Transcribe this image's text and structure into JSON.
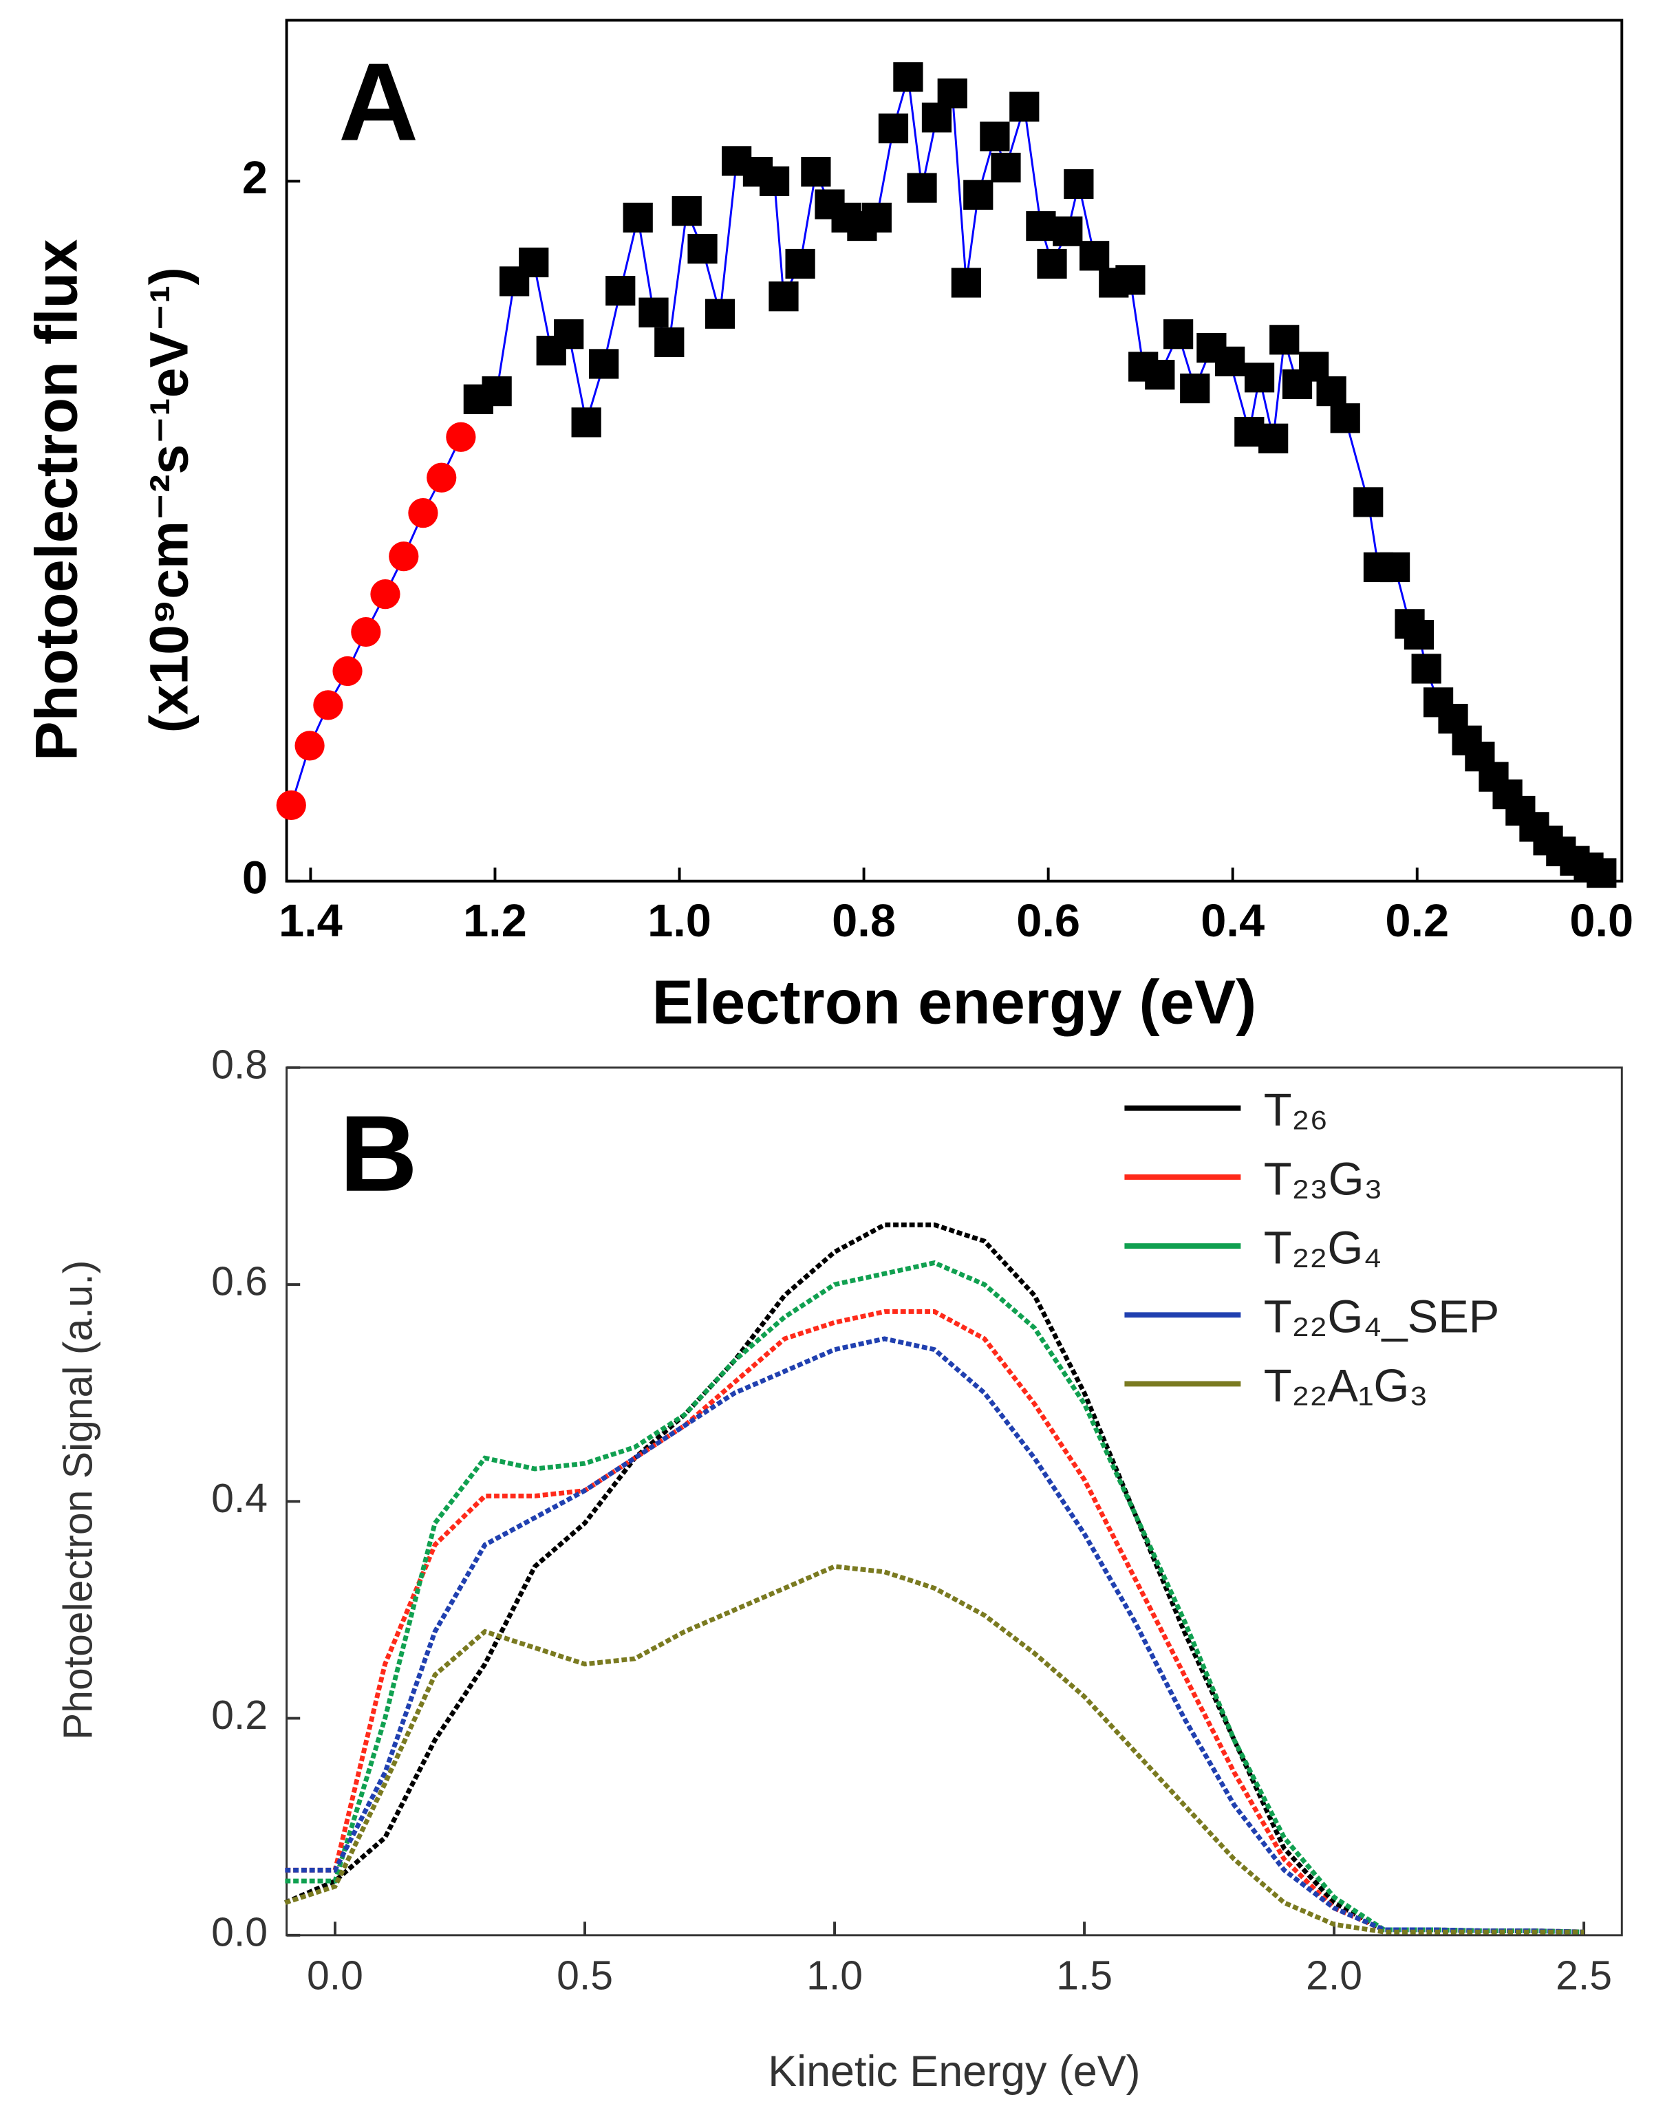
{
  "chart_data": [
    {
      "type": "scatter",
      "panel_label": "A",
      "xlabel": "Electron energy (eV)",
      "ylabel": [
        "Photoelectron flux",
        "(x10⁹cm⁻²s⁻¹eV⁻¹)"
      ],
      "xlim": [
        1.426,
        -0.022
      ],
      "ylim": [
        0,
        2.46
      ],
      "xticks": [
        1.4,
        1.2,
        {
          "value": 1,
          "label": "1.0"
        },
        0.8,
        0.6,
        0.4,
        0.2,
        {
          "value": 0,
          "label": "0.0"
        }
      ],
      "yticks": [
        0,
        2
      ],
      "series": [
        {
          "color": "#ff0000",
          "marker": "circle",
          "line_color": "#0000ff",
          "x": [
            1.421,
            1.401,
            1.381,
            1.36,
            1.34,
            1.319,
            1.299,
            1.278,
            1.258,
            1.237
          ],
          "values": [
            0.217,
            0.387,
            0.503,
            0.6,
            0.712,
            0.82,
            0.928,
            1.052,
            1.153,
            1.269
          ]
        },
        {
          "color": "#000000",
          "marker": "square",
          "line_color": "#0000ff",
          "x": [
            1.218,
            1.198,
            1.179,
            1.158,
            1.139,
            1.12,
            1.101,
            1.082,
            1.064,
            1.045,
            1.028,
            1.011,
            0.992,
            0.975,
            0.956,
            0.938,
            0.915,
            0.897,
            0.887,
            0.869,
            0.852,
            0.837,
            0.819,
            0.802,
            0.786,
            0.768,
            0.752,
            0.737,
            0.721,
            0.704,
            0.689,
            0.676,
            0.658,
            0.646,
            0.626,
            0.608,
            0.596,
            0.579,
            0.567,
            0.55,
            0.529,
            0.511,
            0.497,
            0.479,
            0.459,
            0.441,
            0.423,
            0.403,
            0.382,
            0.371,
            0.356,
            0.344,
            0.33,
            0.312,
            0.293,
            0.278,
            0.253,
            0.242,
            0.224,
            0.208,
            0.198,
            0.19,
            0.177,
            0.161,
            0.146,
            0.132,
            0.117,
            0.102,
            0.088,
            0.073,
            0.058,
            0.044,
            0.029,
            0.014,
            0.0
          ],
          "values": [
            1.377,
            1.4,
            1.714,
            1.768,
            1.516,
            1.563,
            1.311,
            1.478,
            1.687,
            1.896,
            1.625,
            1.54,
            1.915,
            1.807,
            1.621,
            2.058,
            2.027,
            2.0,
            1.671,
            1.764,
            2.027,
            1.934,
            1.896,
            1.872,
            1.896,
            2.151,
            2.298,
            1.981,
            2.182,
            2.251,
            1.71,
            1.961,
            2.128,
            2.039,
            2.213,
            1.872,
            1.764,
            1.857,
            1.992,
            1.787,
            1.71,
            1.718,
            1.47,
            1.447,
            1.563,
            1.408,
            1.524,
            1.485,
            1.284,
            1.439,
            1.265,
            1.547,
            1.42,
            1.47,
            1.4,
            1.323,
            1.083,
            0.897,
            0.897,
            0.735,
            0.704,
            0.607,
            0.511,
            0.464,
            0.402,
            0.356,
            0.298,
            0.248,
            0.201,
            0.155,
            0.116,
            0.085,
            0.058,
            0.039,
            0.023
          ]
        }
      ]
    },
    {
      "type": "line",
      "panel_label": "B",
      "xlabel": "Kinetic Energy (eV)",
      "ylabel": "Photoelectron Signal (a.u.)",
      "xlim": [
        -0.097,
        2.576
      ],
      "ylim": [
        0,
        0.8
      ],
      "xticks": [
        {
          "value": 0,
          "label": "0.0"
        },
        0.5,
        {
          "value": 1,
          "label": "1.0"
        },
        1.5,
        {
          "value": 2,
          "label": "2.0"
        },
        2.5
      ],
      "yticks": [
        {
          "value": 0,
          "label": "0.0"
        },
        0.2,
        0.4,
        0.6,
        0.8
      ],
      "legend": "upper right",
      "x": [
        -0.1,
        0,
        0.1,
        0.2,
        0.3,
        0.4,
        0.5,
        0.6,
        0.7,
        0.8,
        0.9,
        1,
        1.1,
        1.2,
        1.3,
        1.4,
        1.5,
        1.6,
        1.7,
        1.8,
        1.9,
        2,
        2.1,
        2.2,
        2.3,
        2.4,
        2.5
      ],
      "series": [
        {
          "name": "T₂₆",
          "color": "#000000",
          "values": [
            0.03,
            0.05,
            0.09,
            0.18,
            0.25,
            0.34,
            0.38,
            0.44,
            0.48,
            0.53,
            0.59,
            0.63,
            0.655,
            0.655,
            0.64,
            0.59,
            0.5,
            0.39,
            0.28,
            0.18,
            0.08,
            0.03,
            0.005,
            0.005,
            0.004,
            0.004,
            0.003
          ]
        },
        {
          "name": "T₂₃G₃",
          "color": "#ff2a1a",
          "values": [
            0.06,
            0.06,
            0.25,
            0.36,
            0.405,
            0.405,
            0.41,
            0.44,
            0.47,
            0.51,
            0.55,
            0.565,
            0.575,
            0.575,
            0.55,
            0.49,
            0.42,
            0.33,
            0.24,
            0.15,
            0.07,
            0.025,
            0.005,
            0.005,
            0.004,
            0.004,
            0.003
          ]
        },
        {
          "name": "T₂₂G₄",
          "color": "#10a050",
          "values": [
            0.05,
            0.05,
            0.2,
            0.38,
            0.44,
            0.43,
            0.435,
            0.45,
            0.48,
            0.53,
            0.57,
            0.6,
            0.61,
            0.62,
            0.6,
            0.56,
            0.49,
            0.39,
            0.29,
            0.18,
            0.09,
            0.035,
            0.005,
            0.005,
            0.004,
            0.004,
            0.003
          ]
        },
        {
          "name": "T₂₂G₄_SEP",
          "color": "#2040b0",
          "values": [
            0.06,
            0.06,
            0.15,
            0.28,
            0.36,
            0.385,
            0.41,
            0.44,
            0.47,
            0.5,
            0.52,
            0.54,
            0.55,
            0.54,
            0.5,
            0.44,
            0.37,
            0.29,
            0.2,
            0.12,
            0.06,
            0.025,
            0.005,
            0.005,
            0.004,
            0.004,
            0.003
          ]
        },
        {
          "name": "T₂₂A₁G₃",
          "color": "#7a7a20",
          "values": [
            0.03,
            0.045,
            0.14,
            0.24,
            0.28,
            0.265,
            0.25,
            0.255,
            0.28,
            0.3,
            0.32,
            0.34,
            0.335,
            0.32,
            0.295,
            0.26,
            0.22,
            0.17,
            0.12,
            0.07,
            0.03,
            0.01,
            0.003,
            0.003,
            0.003,
            0.003,
            0.003
          ]
        }
      ]
    }
  ]
}
